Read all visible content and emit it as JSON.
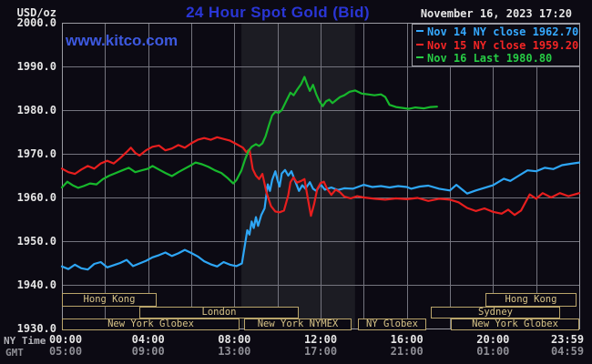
{
  "header": {
    "unit_label": "USD/oz",
    "title": "24 Hour Spot Gold (Bid)",
    "datetime": "November 16, 2023 17:20",
    "watermark": "www.kitco.com"
  },
  "legend": {
    "items": [
      {
        "label": "Nov 14 NY close 1962.70",
        "color": "#35a9ff"
      },
      {
        "label": "Nov 15 NY close 1959.20",
        "color": "#f32525"
      },
      {
        "label": "Nov 16 Last 1980.80",
        "color": "#27cc45"
      }
    ]
  },
  "axes": {
    "ny_label": "NY Time",
    "gmt_label": "GMT",
    "y_ticks": [
      {
        "label": "2000.0",
        "value": 2000
      },
      {
        "label": "1990.0",
        "value": 1990
      },
      {
        "label": "1980.0",
        "value": 1980
      },
      {
        "label": "1970.0",
        "value": 1970
      },
      {
        "label": "1960.0",
        "value": 1960
      },
      {
        "label": "1950.0",
        "value": 1950
      },
      {
        "label": "1940.0",
        "value": 1940
      },
      {
        "label": "1930.0",
        "value": 1930
      }
    ],
    "x_ticks": [
      {
        "ny": "00:00",
        "gmt": "05:00",
        "hour": 0
      },
      {
        "ny": "04:00",
        "gmt": "09:00",
        "hour": 4
      },
      {
        "ny": "08:00",
        "gmt": "13:00",
        "hour": 8
      },
      {
        "ny": "12:00",
        "gmt": "17:00",
        "hour": 12
      },
      {
        "ny": "16:00",
        "gmt": "21:00",
        "hour": 16
      },
      {
        "ny": "20:00",
        "gmt": "01:00",
        "hour": 20
      },
      {
        "ny": "23:59",
        "gmt": "04:59",
        "hour": 24
      }
    ]
  },
  "sessions": [
    {
      "row": 1,
      "label": "Hong Kong",
      "start_hour": 0.0,
      "end_hour": 4.4
    },
    {
      "row": 1,
      "label": "Hong Kong",
      "start_hour": 19.65,
      "end_hour": 23.87
    },
    {
      "row": 2,
      "label": "London",
      "start_hour": 3.6,
      "end_hour": 11.0
    },
    {
      "row": 2,
      "label": "Sydney",
      "start_hour": 17.1,
      "end_hour": 23.1
    },
    {
      "row": 3,
      "label": "New York Globex",
      "start_hour": 0.0,
      "end_hour": 8.24
    },
    {
      "row": 3,
      "label": "New York NYMEX",
      "start_hour": 8.45,
      "end_hour": 13.44
    },
    {
      "row": 3,
      "label": "NY Globex",
      "start_hour": 13.73,
      "end_hour": 16.9
    },
    {
      "row": 3,
      "label": "New York Globex",
      "start_hour": 18.04,
      "end_hour": 23.99
    }
  ],
  "colors": {
    "background": "#0c0a13",
    "grid": "#74747e",
    "border": "#9b9ba3",
    "band": "#1c1c23",
    "white": "#e6e6e6",
    "gray": "#8e8e95",
    "title_blue": "#2a36d6",
    "kitco_blue": "#3d59e0",
    "session": "#d8c488",
    "session_border": "#b9a46a"
  },
  "chart_data": {
    "type": "line",
    "title": "24 Hour Spot Gold (Bid)",
    "xlabel": "Time (NY Time 00:00-23:59 / GMT 05:00-04:59)",
    "ylabel": "USD/oz",
    "ylim": [
      1930,
      2000
    ],
    "xlim_hours": [
      0,
      24
    ],
    "grid": true,
    "legend_position": "top-right",
    "shaded_region_hours": {
      "start": 8.33,
      "end": 13.6,
      "meaning": "New York NYMEX session highlight"
    },
    "series": [
      {
        "id": "nov14",
        "name": "Nov 14",
        "close": "1962.70",
        "color": "#2ea6f5",
        "points": [
          [
            0,
            1944.2
          ],
          [
            0.3,
            1943.6
          ],
          [
            0.6,
            1944.6
          ],
          [
            0.9,
            1943.8
          ],
          [
            1.2,
            1943.5
          ],
          [
            1.5,
            1944.8
          ],
          [
            1.8,
            1945.2
          ],
          [
            2.1,
            1944.0
          ],
          [
            2.4,
            1944.5
          ],
          [
            2.7,
            1945.0
          ],
          [
            3.0,
            1945.7
          ],
          [
            3.3,
            1944.3
          ],
          [
            3.6,
            1944.9
          ],
          [
            3.9,
            1945.5
          ],
          [
            4.2,
            1946.3
          ],
          [
            4.5,
            1946.8
          ],
          [
            4.8,
            1947.4
          ],
          [
            5.1,
            1946.6
          ],
          [
            5.4,
            1947.2
          ],
          [
            5.7,
            1948.0
          ],
          [
            6.0,
            1947.3
          ],
          [
            6.3,
            1946.5
          ],
          [
            6.6,
            1945.4
          ],
          [
            6.9,
            1944.7
          ],
          [
            7.2,
            1944.2
          ],
          [
            7.5,
            1945.2
          ],
          [
            7.8,
            1944.6
          ],
          [
            8.1,
            1944.3
          ],
          [
            8.35,
            1944.9
          ],
          [
            8.5,
            1949.5
          ],
          [
            8.6,
            1952.5
          ],
          [
            8.7,
            1951.5
          ],
          [
            8.8,
            1954.5
          ],
          [
            8.9,
            1953.0
          ],
          [
            9.0,
            1955.5
          ],
          [
            9.1,
            1953.5
          ],
          [
            9.25,
            1956.0
          ],
          [
            9.4,
            1957.5
          ],
          [
            9.55,
            1963.0
          ],
          [
            9.65,
            1961.5
          ],
          [
            9.75,
            1964.0
          ],
          [
            9.9,
            1966.0
          ],
          [
            10.0,
            1964.0
          ],
          [
            10.1,
            1962.5
          ],
          [
            10.2,
            1965.5
          ],
          [
            10.35,
            1966.3
          ],
          [
            10.5,
            1965.0
          ],
          [
            10.65,
            1966.0
          ],
          [
            10.8,
            1964.0
          ],
          [
            11.0,
            1961.5
          ],
          [
            11.15,
            1962.8
          ],
          [
            11.3,
            1962.0
          ],
          [
            11.5,
            1963.5
          ],
          [
            11.65,
            1962.0
          ],
          [
            11.8,
            1961.5
          ],
          [
            12.0,
            1963.0
          ],
          [
            12.2,
            1961.8
          ],
          [
            12.5,
            1962.3
          ],
          [
            12.8,
            1961.7
          ],
          [
            13.1,
            1962.1
          ],
          [
            13.5,
            1962.0
          ],
          [
            14.0,
            1962.9
          ],
          [
            14.4,
            1962.4
          ],
          [
            14.8,
            1962.6
          ],
          [
            15.2,
            1962.3
          ],
          [
            15.6,
            1962.6
          ],
          [
            16.0,
            1962.4
          ],
          [
            16.2,
            1962.0
          ],
          [
            16.6,
            1962.5
          ],
          [
            17.0,
            1962.7
          ],
          [
            17.5,
            1962.0
          ],
          [
            18.0,
            1961.6
          ],
          [
            18.3,
            1962.9
          ],
          [
            18.8,
            1960.9
          ],
          [
            19.2,
            1961.6
          ],
          [
            19.6,
            1962.2
          ],
          [
            20.0,
            1962.8
          ],
          [
            20.5,
            1964.3
          ],
          [
            20.8,
            1963.8
          ],
          [
            21.2,
            1965.0
          ],
          [
            21.6,
            1966.2
          ],
          [
            22.0,
            1966.0
          ],
          [
            22.4,
            1966.8
          ],
          [
            22.8,
            1966.5
          ],
          [
            23.2,
            1967.4
          ],
          [
            23.6,
            1967.7
          ],
          [
            24.0,
            1968.0
          ]
        ]
      },
      {
        "id": "nov15",
        "name": "Nov 15",
        "close": "1959.20",
        "color": "#e81e1e",
        "points": [
          [
            0,
            1966.6
          ],
          [
            0.3,
            1965.8
          ],
          [
            0.6,
            1965.4
          ],
          [
            0.9,
            1966.4
          ],
          [
            1.2,
            1967.2
          ],
          [
            1.5,
            1966.6
          ],
          [
            1.8,
            1967.8
          ],
          [
            2.1,
            1968.4
          ],
          [
            2.4,
            1967.8
          ],
          [
            2.7,
            1969.0
          ],
          [
            3.0,
            1970.4
          ],
          [
            3.2,
            1971.4
          ],
          [
            3.4,
            1970.2
          ],
          [
            3.6,
            1969.6
          ],
          [
            3.9,
            1970.8
          ],
          [
            4.2,
            1971.6
          ],
          [
            4.5,
            1971.9
          ],
          [
            4.8,
            1970.8
          ],
          [
            5.1,
            1971.2
          ],
          [
            5.4,
            1972.0
          ],
          [
            5.7,
            1971.4
          ],
          [
            6.0,
            1972.4
          ],
          [
            6.3,
            1973.2
          ],
          [
            6.6,
            1973.6
          ],
          [
            6.9,
            1973.2
          ],
          [
            7.2,
            1973.8
          ],
          [
            7.5,
            1973.4
          ],
          [
            7.8,
            1973.0
          ],
          [
            8.1,
            1972.2
          ],
          [
            8.4,
            1971.4
          ],
          [
            8.55,
            1970.4
          ],
          [
            8.7,
            1971.0
          ],
          [
            8.85,
            1966.5
          ],
          [
            9.0,
            1965.0
          ],
          [
            9.15,
            1964.2
          ],
          [
            9.3,
            1965.4
          ],
          [
            9.5,
            1961.0
          ],
          [
            9.7,
            1958.0
          ],
          [
            9.9,
            1956.8
          ],
          [
            10.1,
            1956.6
          ],
          [
            10.3,
            1957.0
          ],
          [
            10.5,
            1960.5
          ],
          [
            10.6,
            1963.5
          ],
          [
            10.75,
            1964.6
          ],
          [
            10.9,
            1963.4
          ],
          [
            11.1,
            1963.8
          ],
          [
            11.25,
            1964.2
          ],
          [
            11.4,
            1960.0
          ],
          [
            11.55,
            1955.8
          ],
          [
            11.7,
            1958.5
          ],
          [
            11.85,
            1962.0
          ],
          [
            12.0,
            1963.3
          ],
          [
            12.15,
            1963.6
          ],
          [
            12.3,
            1962.0
          ],
          [
            12.5,
            1960.6
          ],
          [
            12.7,
            1961.8
          ],
          [
            12.9,
            1961.2
          ],
          [
            13.1,
            1960.2
          ],
          [
            13.4,
            1959.8
          ],
          [
            13.7,
            1960.3
          ],
          [
            14.0,
            1960.0
          ],
          [
            14.5,
            1959.7
          ],
          [
            15.0,
            1959.5
          ],
          [
            15.5,
            1959.8
          ],
          [
            16.0,
            1959.6
          ],
          [
            16.5,
            1959.9
          ],
          [
            17.0,
            1959.2
          ],
          [
            17.5,
            1959.7
          ],
          [
            18.0,
            1959.5
          ],
          [
            18.4,
            1958.9
          ],
          [
            18.8,
            1957.6
          ],
          [
            19.2,
            1956.9
          ],
          [
            19.6,
            1957.5
          ],
          [
            20.0,
            1956.7
          ],
          [
            20.4,
            1956.3
          ],
          [
            20.7,
            1957.2
          ],
          [
            21.0,
            1956.0
          ],
          [
            21.3,
            1957.0
          ],
          [
            21.7,
            1960.7
          ],
          [
            22.0,
            1959.7
          ],
          [
            22.3,
            1961.0
          ],
          [
            22.7,
            1960.0
          ],
          [
            23.1,
            1961.0
          ],
          [
            23.5,
            1960.3
          ],
          [
            24.0,
            1961.0
          ]
        ]
      },
      {
        "id": "nov16",
        "name": "Nov 16",
        "last": "1980.80",
        "color": "#17b82c",
        "points": [
          [
            0,
            1962.3
          ],
          [
            0.25,
            1963.6
          ],
          [
            0.5,
            1962.8
          ],
          [
            0.75,
            1962.2
          ],
          [
            1.0,
            1962.6
          ],
          [
            1.3,
            1963.2
          ],
          [
            1.6,
            1963.0
          ],
          [
            1.9,
            1964.2
          ],
          [
            2.2,
            1965.0
          ],
          [
            2.5,
            1965.6
          ],
          [
            2.8,
            1966.2
          ],
          [
            3.1,
            1966.8
          ],
          [
            3.4,
            1965.8
          ],
          [
            3.7,
            1966.2
          ],
          [
            4.0,
            1966.6
          ],
          [
            4.2,
            1967.2
          ],
          [
            4.5,
            1966.4
          ],
          [
            4.8,
            1965.6
          ],
          [
            5.1,
            1964.9
          ],
          [
            5.4,
            1965.8
          ],
          [
            5.7,
            1966.6
          ],
          [
            6.0,
            1967.4
          ],
          [
            6.2,
            1968.0
          ],
          [
            6.5,
            1967.6
          ],
          [
            6.8,
            1967.0
          ],
          [
            7.1,
            1966.2
          ],
          [
            7.4,
            1965.6
          ],
          [
            7.7,
            1964.4
          ],
          [
            7.95,
            1963.2
          ],
          [
            8.1,
            1964.0
          ],
          [
            8.33,
            1966.2
          ],
          [
            8.5,
            1968.8
          ],
          [
            8.65,
            1970.6
          ],
          [
            8.8,
            1971.6
          ],
          [
            9.0,
            1972.2
          ],
          [
            9.15,
            1971.8
          ],
          [
            9.3,
            1972.4
          ],
          [
            9.45,
            1974.0
          ],
          [
            9.6,
            1976.5
          ],
          [
            9.75,
            1978.8
          ],
          [
            9.9,
            1979.6
          ],
          [
            10.05,
            1979.4
          ],
          [
            10.2,
            1980.0
          ],
          [
            10.4,
            1982.0
          ],
          [
            10.6,
            1984.0
          ],
          [
            10.75,
            1983.4
          ],
          [
            10.9,
            1984.6
          ],
          [
            11.1,
            1986.0
          ],
          [
            11.25,
            1987.6
          ],
          [
            11.4,
            1985.6
          ],
          [
            11.5,
            1984.4
          ],
          [
            11.65,
            1985.8
          ],
          [
            11.8,
            1983.6
          ],
          [
            11.95,
            1982.0
          ],
          [
            12.1,
            1980.9
          ],
          [
            12.25,
            1982.0
          ],
          [
            12.4,
            1982.4
          ],
          [
            12.55,
            1981.6
          ],
          [
            12.7,
            1982.2
          ],
          [
            12.9,
            1983.0
          ],
          [
            13.1,
            1983.4
          ],
          [
            13.35,
            1984.2
          ],
          [
            13.6,
            1984.5
          ],
          [
            13.9,
            1983.8
          ],
          [
            14.2,
            1983.6
          ],
          [
            14.5,
            1983.4
          ],
          [
            14.8,
            1983.6
          ],
          [
            15.0,
            1983.0
          ],
          [
            15.2,
            1981.2
          ],
          [
            15.5,
            1980.7
          ],
          [
            15.8,
            1980.5
          ],
          [
            16.1,
            1980.3
          ],
          [
            16.4,
            1980.6
          ],
          [
            16.8,
            1980.4
          ],
          [
            17.1,
            1980.7
          ],
          [
            17.4,
            1980.8
          ]
        ]
      }
    ]
  }
}
